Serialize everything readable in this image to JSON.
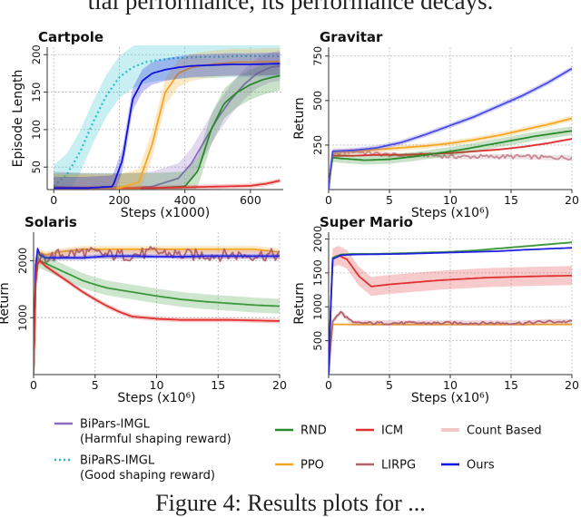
{
  "caption_top": "tial performance, its performance decays.",
  "caption_bottom": "Figure 4: Results plots for ...",
  "chart_data": [
    {
      "id": "cartpole",
      "type": "line",
      "title": "Cartpole",
      "xlabel": "Steps (x1000)",
      "ylabel": "Episode Length",
      "xlim": [
        -20,
        700
      ],
      "ylim": [
        20,
        210
      ],
      "xticks": [
        0,
        200,
        400,
        600
      ],
      "yticks": [
        50,
        100,
        150,
        200
      ],
      "grid": true,
      "series": [
        {
          "name": "BiPaRS-IMGL (Good shaping reward)",
          "color": "#22c0cc",
          "dashed": true,
          "band": 28,
          "x": [
            0,
            40,
            80,
            120,
            160,
            200,
            240,
            280,
            320,
            360,
            400,
            450,
            500,
            550,
            600,
            650,
            690
          ],
          "y": [
            25,
            40,
            70,
            110,
            145,
            170,
            183,
            190,
            193,
            195,
            196,
            197,
            197,
            198,
            198,
            198,
            198
          ]
        },
        {
          "name": "BiPars-IMGL (Harmful shaping reward)",
          "color": "#8e6cc4",
          "band": 20,
          "x": [
            0,
            100,
            200,
            300,
            380,
            420,
            460,
            500,
            540,
            580,
            620,
            660,
            690
          ],
          "y": [
            24,
            22,
            21,
            24,
            35,
            55,
            85,
            115,
            140,
            160,
            175,
            183,
            185
          ]
        },
        {
          "name": "RND",
          "color": "#2a8a2a",
          "band": 20,
          "x": [
            0,
            100,
            200,
            300,
            400,
            440,
            480,
            520,
            560,
            600,
            640,
            690
          ],
          "y": [
            22,
            22,
            22,
            22,
            24,
            45,
            100,
            135,
            150,
            160,
            167,
            172
          ]
        },
        {
          "name": "ICM",
          "color": "#e03030",
          "band": 3,
          "x": [
            0,
            100,
            200,
            300,
            400,
            500,
            600,
            650,
            690
          ],
          "y": [
            22,
            22,
            22,
            22,
            23,
            24,
            25,
            28,
            32
          ]
        },
        {
          "name": "PPO",
          "color": "#f5a623",
          "band": 18,
          "x": [
            0,
            100,
            200,
            260,
            300,
            340,
            380,
            420,
            460,
            500,
            560,
            620,
            690
          ],
          "y": [
            22,
            22,
            22,
            30,
            80,
            150,
            175,
            183,
            186,
            188,
            190,
            190,
            191
          ]
        },
        {
          "name": "Ours",
          "color": "#1010e0",
          "band": 15,
          "x": [
            0,
            100,
            180,
            210,
            240,
            270,
            300,
            340,
            380,
            420,
            480,
            540,
            600,
            690
          ],
          "y": [
            22,
            22,
            24,
            60,
            140,
            165,
            175,
            180,
            183,
            185,
            186,
            187,
            187,
            188
          ]
        }
      ]
    },
    {
      "id": "gravitar",
      "type": "line",
      "title": "Gravitar",
      "xlabel": "Steps (x10⁶)",
      "ylabel": "Return",
      "xlim": [
        0,
        20
      ],
      "ylim": [
        0,
        800
      ],
      "xticks": [
        0,
        5,
        10,
        15,
        20
      ],
      "yticks": [
        250,
        500,
        750
      ],
      "grid": true,
      "series": [
        {
          "name": "LIRPG",
          "color": "#c58a96",
          "band": 15,
          "noise": 12,
          "x": [
            0,
            0.3,
            1,
            2,
            4,
            6,
            8,
            10,
            12,
            14,
            16,
            18,
            20
          ],
          "y": [
            0,
            200,
            205,
            215,
            200,
            190,
            195,
            185,
            185,
            185,
            185,
            180,
            180
          ]
        },
        {
          "name": "ICM",
          "color": "#e03030",
          "band": 6,
          "x": [
            0,
            0.3,
            2,
            4,
            6,
            8,
            10,
            12,
            14,
            16,
            18,
            20
          ],
          "y": [
            0,
            190,
            190,
            195,
            195,
            200,
            205,
            215,
            225,
            240,
            260,
            285
          ]
        },
        {
          "name": "RND",
          "color": "#2a8a2a",
          "band": 25,
          "x": [
            0,
            0.3,
            1,
            3,
            5,
            7,
            9,
            11,
            13,
            15,
            17,
            20
          ],
          "y": [
            0,
            180,
            175,
            165,
            170,
            185,
            205,
            225,
            250,
            275,
            300,
            330
          ]
        },
        {
          "name": "PPO",
          "color": "#f5a623",
          "band": 15,
          "x": [
            0,
            0.3,
            2,
            4,
            6,
            8,
            10,
            12,
            14,
            16,
            18,
            20
          ],
          "y": [
            0,
            210,
            215,
            225,
            235,
            245,
            260,
            280,
            305,
            335,
            365,
            400
          ]
        },
        {
          "name": "Ours",
          "color": "#4a4ae6",
          "band": 14,
          "x": [
            0,
            0.3,
            2,
            4,
            6,
            8,
            10,
            12,
            14,
            16,
            18,
            20
          ],
          "y": [
            0,
            215,
            220,
            235,
            265,
            310,
            360,
            410,
            470,
            530,
            600,
            680
          ]
        }
      ]
    },
    {
      "id": "solaris",
      "type": "line",
      "title": "Solaris",
      "xlabel": "Steps (x10⁶)",
      "ylabel": "Return",
      "xlim": [
        0,
        20
      ],
      "ylim": [
        0,
        2500
      ],
      "xticks": [
        0,
        5,
        10,
        15,
        20
      ],
      "yticks": [
        1000,
        2000
      ],
      "grid": true,
      "series": [
        {
          "name": "PPO",
          "color": "#f5a623",
          "band": 60,
          "x": [
            0,
            0.2,
            0.5,
            1,
            2,
            4,
            6,
            8,
            10,
            12,
            14,
            16,
            18,
            20
          ],
          "y": [
            0,
            2000,
            2150,
            2100,
            2150,
            2200,
            2200,
            2200,
            2200,
            2200,
            2200,
            2200,
            2200,
            2150
          ]
        },
        {
          "name": "LIRPG",
          "color": "#b3636e",
          "band": 80,
          "noise": 110,
          "x": [
            0,
            0.2,
            0.5,
            1,
            2,
            4,
            6,
            8,
            10,
            12,
            14,
            16,
            18,
            20
          ],
          "y": [
            0,
            2100,
            2000,
            2050,
            2100,
            2150,
            2100,
            2100,
            2150,
            2100,
            2100,
            2100,
            2100,
            2100
          ]
        },
        {
          "name": "Ours",
          "color": "#2020e0",
          "band": 40,
          "x": [
            0,
            0.2,
            0.5,
            1,
            2,
            4,
            6,
            8,
            10,
            12,
            14,
            16,
            18,
            20
          ],
          "y": [
            0,
            2300,
            2100,
            2050,
            2050,
            2050,
            2080,
            2080,
            2070,
            2070,
            2080,
            2080,
            2080,
            2080
          ]
        },
        {
          "name": "RND",
          "color": "#3b983b",
          "band": 130,
          "x": [
            0,
            0.2,
            0.5,
            1,
            2,
            3,
            4,
            5,
            6,
            8,
            10,
            12,
            14,
            16,
            18,
            20
          ],
          "y": [
            0,
            1900,
            2000,
            1950,
            1850,
            1750,
            1650,
            1580,
            1520,
            1450,
            1380,
            1320,
            1280,
            1250,
            1220,
            1200
          ]
        },
        {
          "name": "ICM",
          "color": "#e03030",
          "band": 40,
          "x": [
            0,
            0.2,
            0.5,
            1,
            2,
            3,
            4,
            5,
            6,
            7,
            8,
            10,
            12,
            14,
            16,
            18,
            20
          ],
          "y": [
            0,
            1900,
            2000,
            1900,
            1750,
            1600,
            1450,
            1320,
            1200,
            1100,
            1020,
            980,
            960,
            960,
            960,
            950,
            940
          ]
        }
      ]
    },
    {
      "id": "supermario",
      "type": "line",
      "title": "Super Mario",
      "xlabel": "Steps (x10⁶)",
      "ylabel": "Return",
      "xlim": [
        0,
        20
      ],
      "ylim": [
        0,
        2100
      ],
      "xticks": [
        0,
        5,
        10,
        15,
        20
      ],
      "yticks": [
        500,
        1000,
        1500,
        2000
      ],
      "grid": true,
      "series": [
        {
          "name": "PPO",
          "color": "#f5a623",
          "band": 5,
          "x": [
            0,
            0.3,
            1,
            2,
            20
          ],
          "y": [
            0,
            740,
            740,
            740,
            740
          ]
        },
        {
          "name": "LIRPG",
          "color": "#b3636e",
          "band": 40,
          "noise": 22,
          "x": [
            0,
            0.3,
            1,
            2,
            3,
            4,
            6,
            8,
            10,
            12,
            14,
            16,
            18,
            20
          ],
          "y": [
            0,
            780,
            920,
            760,
            760,
            760,
            760,
            760,
            760,
            760,
            760,
            760,
            780,
            780
          ]
        },
        {
          "name": "ICM",
          "color": "#e03030",
          "band": 140,
          "x": [
            0,
            0.3,
            0.8,
            1.5,
            2.5,
            3.5,
            5,
            7,
            9,
            11,
            13,
            15,
            17,
            20
          ],
          "y": [
            0,
            1720,
            1760,
            1700,
            1450,
            1300,
            1330,
            1360,
            1390,
            1410,
            1430,
            1440,
            1450,
            1460
          ]
        },
        {
          "name": "RND",
          "color": "#3b983b",
          "band": 15,
          "x": [
            0,
            0.3,
            1,
            2,
            4,
            6,
            8,
            10,
            12,
            14,
            16,
            18,
            20
          ],
          "y": [
            0,
            1720,
            1770,
            1780,
            1780,
            1790,
            1800,
            1810,
            1830,
            1860,
            1890,
            1920,
            1950
          ]
        },
        {
          "name": "Ours",
          "color": "#2020e0",
          "band": 8,
          "x": [
            0,
            0.3,
            1,
            2,
            4,
            6,
            8,
            10,
            12,
            14,
            16,
            18,
            20
          ],
          "y": [
            0,
            1700,
            1760,
            1770,
            1775,
            1780,
            1790,
            1800,
            1810,
            1820,
            1840,
            1855,
            1870
          ]
        }
      ]
    }
  ],
  "legend": [
    {
      "label": "BiPars-IMGL",
      "sublabel": "(Harmful shaping reward)",
      "color": "#8e6cc4",
      "dashed": false
    },
    {
      "label": "BiPaRS-IMGL",
      "sublabel": "(Good shaping reward)",
      "color": "#22c0cc",
      "dashed": true
    },
    {
      "label": "RND",
      "color": "#2a8a2a",
      "dashed": false
    },
    {
      "label": "PPO",
      "color": "#f5a623",
      "dashed": false
    },
    {
      "label": "ICM",
      "color": "#e03030",
      "dashed": false
    },
    {
      "label": "LIRPG",
      "color": "#b3636e",
      "dashed": false
    },
    {
      "label": "Count Based",
      "color": "#f4c6c6",
      "dashed": false
    },
    {
      "label": "Ours",
      "color": "#1010e0",
      "dashed": false
    }
  ]
}
